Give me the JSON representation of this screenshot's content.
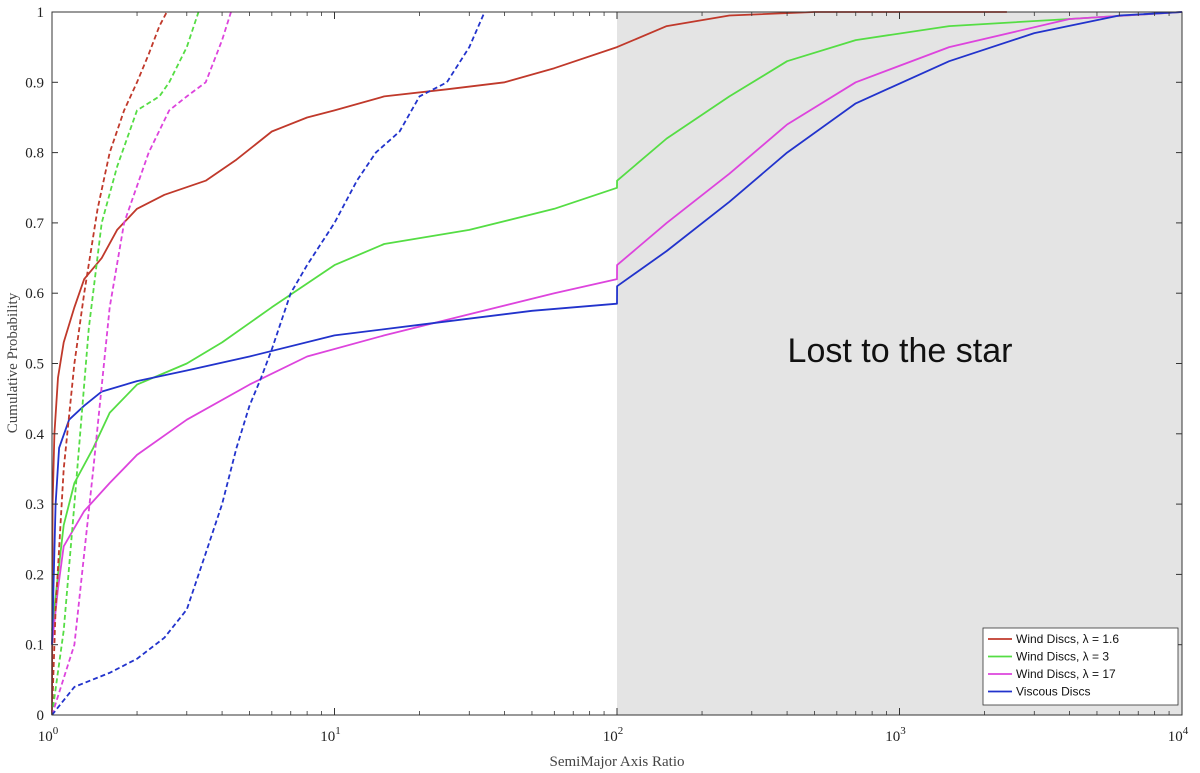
{
  "chart_data": {
    "type": "line",
    "xlabel": "SemiMajor Axis Ratio",
    "ylabel": "Cumulative Probability",
    "xscale": "log",
    "xlim": [
      1,
      10000
    ],
    "ylim": [
      0,
      1
    ],
    "x_ticks": [
      {
        "value": 1,
        "base": "10",
        "exp": "0"
      },
      {
        "value": 10,
        "base": "10",
        "exp": "1"
      },
      {
        "value": 100,
        "base": "10",
        "exp": "2"
      },
      {
        "value": 1000,
        "base": "10",
        "exp": "3"
      },
      {
        "value": 10000,
        "base": "10",
        "exp": "4"
      }
    ],
    "y_ticks": [
      0,
      0.1,
      0.2,
      0.3,
      0.4,
      0.5,
      0.6,
      0.7,
      0.8,
      0.9,
      1
    ],
    "y_tick_labels": [
      "0",
      "0.1",
      "0.2",
      "0.3",
      "0.4",
      "0.5",
      "0.6",
      "0.7",
      "0.8",
      "0.9",
      "1"
    ],
    "grid": false,
    "legend_position": "bottom-right",
    "shaded_region": {
      "x_from": 100,
      "x_to": 10000,
      "color": "#e4e4e4",
      "label": "Lost to the star"
    },
    "series": [
      {
        "name": "Wind Discs, λ = 1.6",
        "color": "#c0392b",
        "style": "solid",
        "points": [
          [
            1,
            0
          ],
          [
            1.005,
            0.3
          ],
          [
            1.02,
            0.4
          ],
          [
            1.05,
            0.48
          ],
          [
            1.1,
            0.53
          ],
          [
            1.2,
            0.58
          ],
          [
            1.3,
            0.62
          ],
          [
            1.5,
            0.65
          ],
          [
            1.7,
            0.69
          ],
          [
            2.0,
            0.72
          ],
          [
            2.5,
            0.74
          ],
          [
            3.5,
            0.76
          ],
          [
            4.5,
            0.79
          ],
          [
            6,
            0.83
          ],
          [
            8,
            0.85
          ],
          [
            10,
            0.86
          ],
          [
            15,
            0.88
          ],
          [
            25,
            0.89
          ],
          [
            40,
            0.9
          ],
          [
            60,
            0.92
          ],
          [
            100,
            0.95
          ],
          [
            150,
            0.98
          ],
          [
            250,
            0.995
          ],
          [
            500,
            1
          ],
          [
            2400,
            1
          ]
        ]
      },
      {
        "name": "Wind Discs, λ = 3",
        "color": "#55dd44",
        "style": "solid",
        "points": [
          [
            1,
            0.12
          ],
          [
            1.05,
            0.2
          ],
          [
            1.1,
            0.27
          ],
          [
            1.2,
            0.33
          ],
          [
            1.4,
            0.38
          ],
          [
            1.6,
            0.43
          ],
          [
            2,
            0.47
          ],
          [
            3,
            0.5
          ],
          [
            4,
            0.53
          ],
          [
            6,
            0.58
          ],
          [
            10,
            0.64
          ],
          [
            15,
            0.67
          ],
          [
            30,
            0.69
          ],
          [
            60,
            0.72
          ],
          [
            100,
            0.75
          ],
          [
            100.1,
            0.76
          ],
          [
            150,
            0.82
          ],
          [
            250,
            0.88
          ],
          [
            400,
            0.93
          ],
          [
            700,
            0.96
          ],
          [
            1500,
            0.98
          ],
          [
            4000,
            0.99
          ],
          [
            10000,
            1
          ]
        ]
      },
      {
        "name": "Wind Discs, λ = 17",
        "color": "#dd44dd",
        "style": "solid",
        "points": [
          [
            1,
            0.1
          ],
          [
            1.05,
            0.18
          ],
          [
            1.1,
            0.24
          ],
          [
            1.3,
            0.29
          ],
          [
            1.6,
            0.33
          ],
          [
            2,
            0.37
          ],
          [
            3,
            0.42
          ],
          [
            5,
            0.47
          ],
          [
            8,
            0.51
          ],
          [
            15,
            0.54
          ],
          [
            30,
            0.57
          ],
          [
            60,
            0.6
          ],
          [
            100,
            0.62
          ],
          [
            100.1,
            0.64
          ],
          [
            150,
            0.7
          ],
          [
            250,
            0.77
          ],
          [
            400,
            0.84
          ],
          [
            700,
            0.9
          ],
          [
            1500,
            0.95
          ],
          [
            4000,
            0.99
          ],
          [
            10000,
            1
          ]
        ]
      },
      {
        "name": "Viscous Discs",
        "color": "#2233cc",
        "style": "solid",
        "points": [
          [
            1,
            0.1
          ],
          [
            1.03,
            0.3
          ],
          [
            1.06,
            0.38
          ],
          [
            1.15,
            0.42
          ],
          [
            1.3,
            0.44
          ],
          [
            1.5,
            0.46
          ],
          [
            2,
            0.475
          ],
          [
            3,
            0.49
          ],
          [
            5,
            0.51
          ],
          [
            10,
            0.54
          ],
          [
            20,
            0.555
          ],
          [
            50,
            0.575
          ],
          [
            100,
            0.585
          ],
          [
            100.1,
            0.61
          ],
          [
            150,
            0.66
          ],
          [
            250,
            0.73
          ],
          [
            400,
            0.8
          ],
          [
            700,
            0.87
          ],
          [
            1500,
            0.93
          ],
          [
            3000,
            0.97
          ],
          [
            6000,
            0.995
          ],
          [
            10000,
            1
          ]
        ]
      },
      {
        "name": "Wind Discs, λ = 1.6 (dashed)",
        "color": "#c0392b",
        "style": "dashed",
        "points": [
          [
            1,
            0
          ],
          [
            1.03,
            0.15
          ],
          [
            1.1,
            0.35
          ],
          [
            1.2,
            0.5
          ],
          [
            1.3,
            0.6
          ],
          [
            1.45,
            0.72
          ],
          [
            1.6,
            0.8
          ],
          [
            1.8,
            0.86
          ],
          [
            2.0,
            0.9
          ],
          [
            2.2,
            0.94
          ],
          [
            2.4,
            0.98
          ],
          [
            2.55,
            1
          ]
        ]
      },
      {
        "name": "Wind Discs, λ = 3 (dashed)",
        "color": "#55dd44",
        "style": "dashed",
        "points": [
          [
            1,
            0
          ],
          [
            1.1,
            0.12
          ],
          [
            1.2,
            0.3
          ],
          [
            1.35,
            0.55
          ],
          [
            1.5,
            0.7
          ],
          [
            1.7,
            0.78
          ],
          [
            2.0,
            0.86
          ],
          [
            2.4,
            0.88
          ],
          [
            2.6,
            0.9
          ],
          [
            3.0,
            0.95
          ],
          [
            3.3,
            1
          ]
        ]
      },
      {
        "name": "Wind Discs, λ = 17 (dashed)",
        "color": "#dd44dd",
        "style": "dashed",
        "points": [
          [
            1,
            0
          ],
          [
            1.2,
            0.1
          ],
          [
            1.4,
            0.35
          ],
          [
            1.6,
            0.58
          ],
          [
            1.8,
            0.7
          ],
          [
            2.2,
            0.8
          ],
          [
            2.6,
            0.86
          ],
          [
            3.0,
            0.88
          ],
          [
            3.5,
            0.9
          ],
          [
            4.0,
            0.96
          ],
          [
            4.3,
            1
          ]
        ]
      },
      {
        "name": "Viscous Discs (dashed)",
        "color": "#2233cc",
        "style": "dashed",
        "points": [
          [
            1,
            0
          ],
          [
            1.2,
            0.04
          ],
          [
            1.6,
            0.06
          ],
          [
            2.0,
            0.08
          ],
          [
            2.5,
            0.11
          ],
          [
            3.0,
            0.15
          ],
          [
            3.5,
            0.23
          ],
          [
            4.0,
            0.3
          ],
          [
            4.5,
            0.38
          ],
          [
            5.0,
            0.44
          ],
          [
            5.5,
            0.48
          ],
          [
            6.0,
            0.52
          ],
          [
            7.0,
            0.6
          ],
          [
            8.0,
            0.64
          ],
          [
            10,
            0.7
          ],
          [
            12,
            0.76
          ],
          [
            14,
            0.8
          ],
          [
            17,
            0.83
          ],
          [
            20,
            0.88
          ],
          [
            25,
            0.9
          ],
          [
            30,
            0.95
          ],
          [
            34,
            1
          ]
        ]
      }
    ],
    "legend": [
      {
        "label": "Wind Discs, λ = 1.6",
        "color": "#c0392b"
      },
      {
        "label": "Wind Discs, λ = 3",
        "color": "#55dd44"
      },
      {
        "label": "Wind Discs, λ = 17",
        "color": "#dd44dd"
      },
      {
        "label": "Viscous Discs",
        "color": "#2233cc"
      }
    ]
  }
}
